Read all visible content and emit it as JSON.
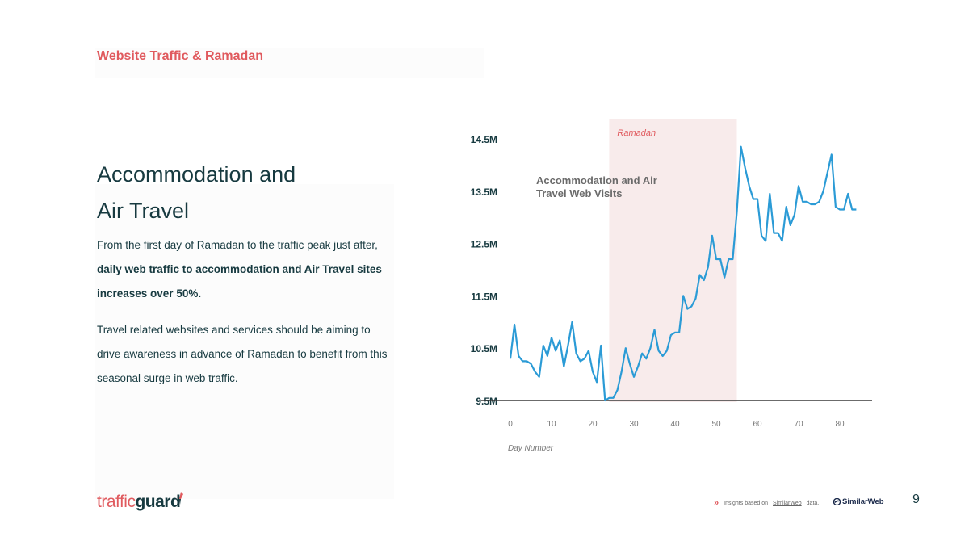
{
  "slide": {
    "title": "Website Traffic & Ramadan",
    "heading_line1": "Accommodation and",
    "heading_line2": "Air Travel",
    "para1_start": "From the first day of Ramadan to the traffic peak just after, ",
    "para1_bold": "daily web traffic to accommodation and Air Travel sites increases over 50%.",
    "para2": "Travel related websites and services should be aiming to drive awareness in advance of Ramadan to benefit from this seasonal surge in web traffic.",
    "page_number": "9"
  },
  "footer": {
    "note_prefix": "Insights based on",
    "note_link": "SimilarWeb",
    "note_suffix": "data.",
    "similarweb_logo": "SimilarWeb",
    "brand_part1": "traffic",
    "brand_part2": "guard"
  },
  "colors": {
    "accent": "#e05a5e",
    "line": "#2b9bd6",
    "band": "#f8ebeb",
    "text": "#173a40"
  },
  "chart_data": {
    "type": "line",
    "title": "Accommodation and Air Travel Web Visits",
    "xlabel": "Day Number",
    "ylabel": "",
    "xlim": [
      0,
      84
    ],
    "ylim": [
      9.5,
      14.5
    ],
    "x_ticks": [
      0,
      10,
      20,
      30,
      40,
      50,
      60,
      70,
      80
    ],
    "y_ticks": [
      9.5,
      10.5,
      11.5,
      12.5,
      13.5,
      14.5
    ],
    "y_tick_labels": [
      "9.5M",
      "10.5M",
      "11.5M",
      "12.5M",
      "13.5M",
      "14.5M"
    ],
    "highlight": {
      "label": "Ramadan",
      "x_start": 24,
      "x_end": 55
    },
    "series": [
      {
        "name": "Accommodation and Air Travel Web Visits",
        "x": [
          0,
          1,
          2,
          3,
          4,
          5,
          6,
          7,
          8,
          9,
          10,
          11,
          12,
          13,
          14,
          15,
          16,
          17,
          18,
          19,
          20,
          21,
          22,
          23,
          24,
          25,
          26,
          27,
          28,
          29,
          30,
          31,
          32,
          33,
          34,
          35,
          36,
          37,
          38,
          39,
          40,
          41,
          42,
          43,
          44,
          45,
          46,
          47,
          48,
          49,
          50,
          51,
          52,
          53,
          54,
          55,
          56,
          57,
          58,
          59,
          60,
          61,
          62,
          63,
          64,
          65,
          66,
          67,
          68,
          69,
          70,
          71,
          72,
          73,
          74,
          75,
          76,
          77,
          78,
          79,
          80,
          81,
          82,
          83,
          84
        ],
        "values": [
          10.3,
          10.95,
          10.35,
          10.25,
          10.25,
          10.2,
          10.05,
          9.95,
          10.55,
          10.35,
          10.7,
          10.45,
          10.65,
          10.15,
          10.55,
          11.0,
          10.4,
          10.25,
          10.3,
          10.45,
          10.05,
          9.85,
          10.55,
          9.5,
          9.55,
          9.55,
          9.7,
          10.05,
          10.5,
          10.2,
          9.95,
          10.15,
          10.4,
          10.3,
          10.5,
          10.85,
          10.45,
          10.35,
          10.45,
          10.75,
          10.8,
          10.8,
          11.5,
          11.25,
          11.3,
          11.45,
          11.9,
          11.8,
          12.05,
          12.65,
          12.2,
          12.2,
          11.85,
          12.2,
          12.2,
          13.1,
          14.35,
          13.95,
          13.6,
          13.35,
          13.35,
          12.65,
          12.55,
          13.45,
          12.7,
          12.7,
          12.55,
          13.2,
          12.85,
          13.05,
          13.6,
          13.3,
          13.3,
          13.25,
          13.25,
          13.3,
          13.5,
          13.85,
          14.2,
          13.2,
          13.15,
          13.15,
          13.45,
          13.15,
          13.15
        ]
      }
    ]
  }
}
